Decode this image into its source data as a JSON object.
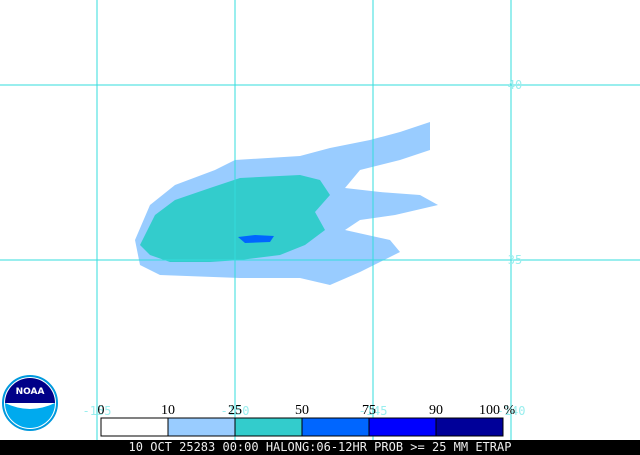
{
  "map": {
    "lat_labels": [
      "40",
      "35"
    ],
    "lon_labels": [
      "-155",
      "-150",
      "-145",
      "-140"
    ]
  },
  "legend": {
    "labels": [
      "0",
      "10",
      "25",
      "50",
      "75",
      "90",
      "100 %"
    ],
    "colors": [
      "#ffffff",
      "#99ccff",
      "#33cccc",
      "#0066ff",
      "#0000ff",
      "#000099"
    ]
  },
  "logo": "NOAA",
  "footer": "10 OCT 25283 00:00 HALONG:06-12HR PROB >= 25 MM ETRAP"
}
